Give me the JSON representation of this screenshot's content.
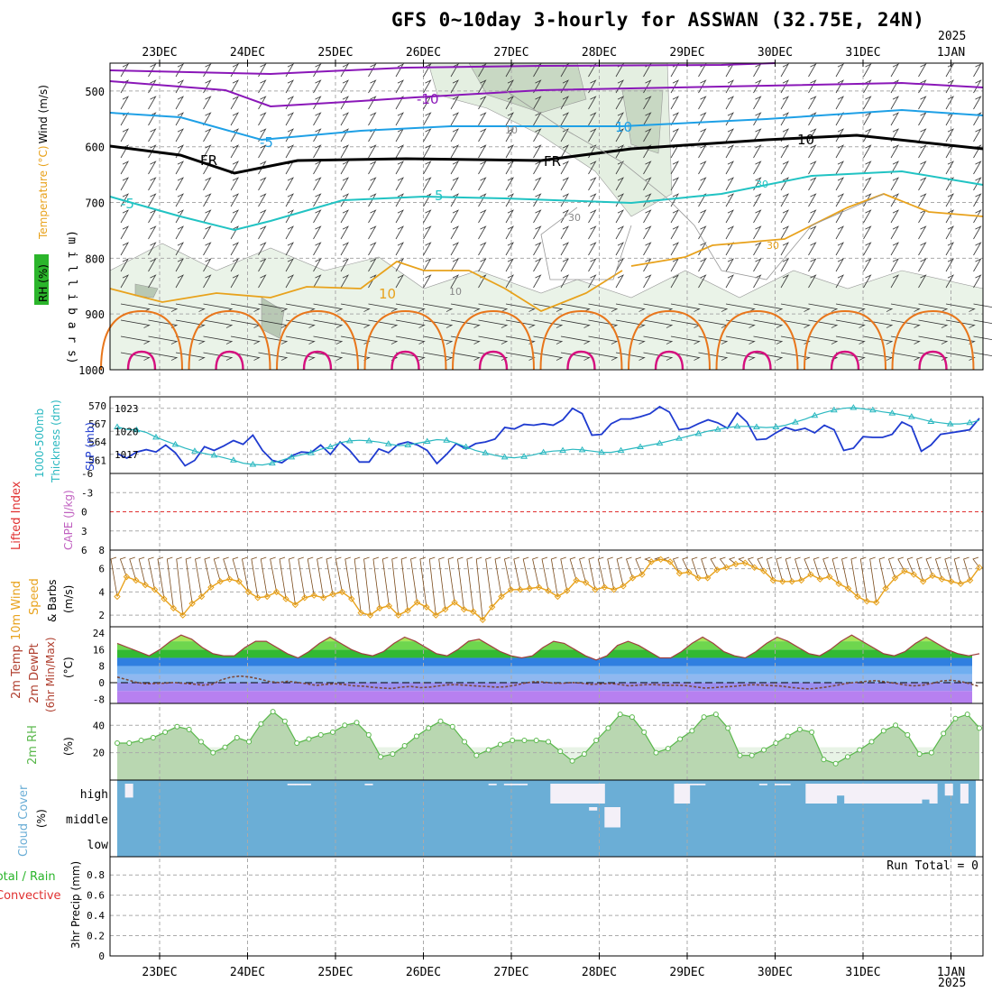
{
  "title": "GFS 0~10day 3-hourly for ASSWAN (32.75E, 24N)",
  "year_label": "2025",
  "days": [
    "23DEC",
    "24DEC",
    "25DEC",
    "26DEC",
    "27DEC",
    "28DEC",
    "29DEC",
    "30DEC",
    "31DEC",
    "1JAN"
  ],
  "colors": {
    "purple": "#8a17b8",
    "sky": "#1ea0e6",
    "cyan": "#21c3c3",
    "orange": "#e8a21c",
    "darkorange": "#e8761c",
    "magenta": "#d6107f",
    "slp": "#1f3bd0",
    "thick": "#2ab8c0",
    "wind": "#e8a21c",
    "rh": "#5ab84c",
    "cloud": "#6baed6"
  },
  "chart_data": [
    {
      "panel": "upper-air",
      "type": "heatmap",
      "ylabel_parts": [
        "Temperature (°C)",
        "Wind (m/s)",
        "RH (%)",
        "(m i l l i b a r s)"
      ],
      "yticks": [
        500,
        600,
        700,
        800,
        900,
        1000
      ],
      "contour_labels": [
        "-10",
        "-5",
        "FR",
        "-5",
        "FR",
        "5",
        "10",
        "10",
        "30",
        "30",
        "10",
        "10",
        "10",
        "30"
      ]
    },
    {
      "panel": "slp-thickness",
      "type": "line",
      "ylabel_parts": [
        "SLP (mb)",
        "1000-500mb",
        "Thickness (dm)"
      ],
      "slp_ticks": [
        1017,
        1020,
        1023
      ],
      "thick_ticks": [
        561,
        564,
        567,
        570
      ],
      "series": [
        {
          "name": "SLP",
          "values": [
            1017.1,
            1016.5,
            1017.3,
            1017.6,
            1017.3,
            1018.2,
            1017.2,
            1015.5,
            1016.2,
            1018.0,
            1017.5,
            1018.1,
            1018.8,
            1018.3,
            1019.5,
            1017.5,
            1016.2,
            1015.9,
            1016.8,
            1017.3,
            1017.2,
            1018.2,
            1017.0,
            1018.6,
            1017.5,
            1016.0,
            1016.0,
            1017.7,
            1017.2,
            1018.3,
            1018.6,
            1018.2,
            1017.5,
            1015.8,
            1017.0,
            1018.4,
            1017.7,
            1018.4,
            1018.6,
            1019.0,
            1020.5,
            1020.3,
            1020.9,
            1020.8,
            1021.0,
            1020.8,
            1021.5,
            1023.0,
            1022.3,
            1019.5,
            1019.6,
            1021.0,
            1021.6,
            1021.6,
            1021.9,
            1022.3,
            1023.2,
            1022.5,
            1020.2,
            1020.4,
            1021.0,
            1021.5,
            1021.1,
            1020.4,
            1022.4,
            1021.2,
            1018.9,
            1019.0,
            1019.8,
            1020.5,
            1020.1,
            1020.4,
            1019.8,
            1020.8,
            1020.2,
            1017.5,
            1017.8,
            1019.3,
            1019.2,
            1019.2,
            1019.6,
            1021.2,
            1020.6,
            1017.4,
            1018.2,
            1019.6,
            1019.8,
            1020.0,
            1020.2,
            1021.7
          ]
        },
        {
          "name": "Thickness",
          "values": [
            566.5,
            566.1,
            566.0,
            565.6,
            564.8,
            564.2,
            563.6,
            563.0,
            562.5,
            562.1,
            561.8,
            561.4,
            561.0,
            560.5,
            560.3,
            560.2,
            560.5,
            561.0,
            561.5,
            561.9,
            562.2,
            562.8,
            563.2,
            563.9,
            564.2,
            564.3,
            564.2,
            564.0,
            563.7,
            563.4,
            563.5,
            563.8,
            564.1,
            564.4,
            564.3,
            563.8,
            563.2,
            562.6,
            562.2,
            561.8,
            561.5,
            561.4,
            561.6,
            561.9,
            562.3,
            562.5,
            562.6,
            562.8,
            562.7,
            562.5,
            562.3,
            562.3,
            562.6,
            562.9,
            563.2,
            563.5,
            563.8,
            564.2,
            564.6,
            565.0,
            565.4,
            565.8,
            566.1,
            566.4,
            566.6,
            566.6,
            566.5,
            566.4,
            566.5,
            566.8,
            567.3,
            567.8,
            568.4,
            568.9,
            569.3,
            569.6,
            569.7,
            569.5,
            569.3,
            569.0,
            568.8,
            568.5,
            568.2,
            567.8,
            567.4,
            567.2,
            567.0,
            567.0,
            567.2,
            567.6
          ]
        }
      ]
    },
    {
      "panel": "lifted-index-cape",
      "type": "line",
      "ylabel_parts": [
        "Lifted Index",
        "CAPE (J/kg)"
      ],
      "yticks": [
        "-6",
        "-3",
        "0",
        "3",
        "6"
      ],
      "right_tick": "8",
      "values": []
    },
    {
      "panel": "wind10m",
      "type": "line",
      "ylabel_parts": [
        "10m Wind",
        "Speed",
        "& Barbs",
        "(m/s)"
      ],
      "yticks": [
        2,
        4,
        6
      ],
      "values": [
        3.6,
        5.3,
        5.0,
        4.6,
        4.2,
        3.4,
        2.6,
        2.0,
        3.0,
        3.6,
        4.4,
        4.9,
        5.1,
        4.9,
        4.0,
        3.5,
        3.6,
        4.0,
        3.4,
        2.9,
        3.5,
        3.7,
        3.5,
        3.8,
        4.0,
        3.4,
        2.2,
        2.0,
        2.6,
        2.8,
        2.0,
        2.4,
        3.1,
        2.7,
        2.0,
        2.5,
        3.1,
        2.5,
        2.3,
        1.6,
        2.7,
        3.6,
        4.2,
        4.2,
        4.3,
        4.4,
        4.1,
        3.6,
        4.1,
        5.0,
        4.8,
        4.2,
        4.4,
        4.2,
        4.5,
        5.2,
        5.5,
        6.6,
        6.8,
        6.6,
        5.6,
        5.7,
        5.2,
        5.2,
        5.9,
        6.1,
        6.4,
        6.5,
        6.1,
        5.8,
        5.0,
        4.9,
        4.9,
        5.0,
        5.5,
        5.1,
        5.3,
        4.7,
        4.3,
        3.6,
        3.2,
        3.1,
        4.3,
        5.2,
        5.8,
        5.5,
        4.9,
        5.4,
        5.1,
        4.9,
        4.7,
        5.0,
        6.1
      ]
    },
    {
      "panel": "temp-dewpoint",
      "type": "area",
      "ylabel_parts": [
        "2m Temp",
        "2m DewPt",
        "(6hr Min/Max)",
        "(°C)"
      ],
      "yticks": [
        -8,
        0,
        8,
        16,
        24
      ],
      "temp": [
        19,
        17,
        15,
        13,
        16,
        20,
        23,
        21,
        17,
        14,
        13,
        13,
        17,
        20,
        20,
        17,
        14,
        12,
        15,
        19,
        22,
        19,
        16,
        14,
        13,
        15,
        19,
        22,
        20,
        17,
        14,
        13,
        16,
        20,
        21,
        18,
        15,
        13,
        12,
        13,
        17,
        20,
        19,
        16,
        13,
        11,
        13,
        18,
        20,
        18,
        15,
        12,
        12,
        15,
        19,
        22,
        19,
        15,
        13,
        12,
        15,
        19,
        22,
        20,
        17,
        14,
        13,
        16,
        20,
        23,
        20,
        17,
        14,
        13,
        15,
        19,
        22,
        19,
        16,
        14,
        13,
        14
      ],
      "dewpoint": [
        2.7,
        1.5,
        0.2,
        -0.5,
        -0.4,
        -0.2,
        0.1,
        -0.3,
        -0.6,
        -1.2,
        -0.8,
        1.4,
        2.7,
        3.2,
        2.7,
        1.8,
        0.6,
        0.1,
        0.7,
        0.2,
        -0.5,
        -1.3,
        -0.8,
        -0.5,
        -0.9,
        -1.5,
        -1.7,
        -2.2,
        -2.6,
        -2.8,
        -2.1,
        -1.8,
        -2.4,
        -2.1,
        -1.5,
        -1.0,
        -1.0,
        -1.3,
        -1.6,
        -1.8,
        -2.1,
        -2.0,
        -1.2,
        -0.2,
        0.5,
        0.3,
        -0.2,
        -0.3,
        0.1,
        -0.2,
        -0.8,
        -0.6,
        -0.4,
        -0.8,
        -1.5,
        -1.2,
        -0.9,
        -1.0,
        -1.3,
        -1.2,
        -1.4,
        -2.0,
        -2.6,
        -2.4,
        -2.0,
        -1.8,
        -1.3,
        -1.0,
        -1.1,
        -1.4,
        -1.6,
        -2.2,
        -2.7,
        -3.0,
        -2.6,
        -2.0,
        -1.2,
        -0.3,
        0.2,
        0.6,
        1.0,
        0.5,
        -0.2,
        -1.0,
        -1.5,
        -1.2,
        -0.3,
        0.8,
        1.2,
        0.6,
        -0.5,
        -1.8
      ]
    },
    {
      "panel": "rh2m",
      "type": "area",
      "ylabel_parts": [
        "2m RH",
        "(%)"
      ],
      "yticks": [
        20,
        40
      ],
      "values": [
        27,
        27,
        29,
        31,
        35,
        39,
        37,
        28,
        20,
        24,
        31,
        28,
        41,
        50,
        43,
        27,
        30,
        33,
        35,
        40,
        42,
        33,
        17,
        19,
        25,
        32,
        38,
        43,
        39,
        28,
        18,
        22,
        26,
        29,
        29,
        29,
        28,
        21,
        14,
        19,
        29,
        38,
        48,
        46,
        35,
        20,
        23,
        30,
        36,
        46,
        48,
        38,
        18,
        18,
        22,
        27,
        32,
        37,
        35,
        15,
        12,
        17,
        22,
        28,
        36,
        40,
        33,
        19,
        20,
        34,
        45,
        48,
        38
      ]
    },
    {
      "panel": "cloud-cover",
      "type": "area",
      "ylabel_parts": [
        "Cloud Cover",
        "(%)"
      ],
      "levels": [
        "high",
        "middle",
        "low"
      ],
      "high": [
        0,
        70,
        0,
        0,
        0,
        0,
        0,
        0,
        0,
        0,
        0,
        0,
        0,
        0,
        0,
        0,
        0,
        0,
        0,
        0,
        0,
        0,
        8,
        8,
        8,
        0,
        0,
        0,
        0,
        0,
        0,
        0,
        8,
        0,
        0,
        0,
        0,
        0,
        0,
        0,
        0,
        0,
        0,
        0,
        0,
        0,
        0,
        0,
        8,
        0,
        8,
        8,
        8,
        0,
        0,
        0,
        100,
        100,
        100,
        100,
        100,
        100,
        100,
        0,
        0,
        0,
        0,
        0,
        0,
        0,
        0,
        0,
        100,
        100,
        8,
        8,
        0,
        0,
        0,
        0,
        0,
        0,
        0,
        8,
        0,
        8,
        8,
        0,
        0,
        100,
        100,
        100,
        100,
        60,
        100,
        100,
        100,
        100,
        100,
        100,
        100,
        100,
        100,
        100,
        80,
        100,
        0,
        60,
        0,
        100,
        0
      ],
      "middle": [
        0,
        0,
        0,
        0,
        0,
        0,
        0,
        0,
        0,
        0,
        0,
        0,
        0,
        0,
        0,
        0,
        0,
        0,
        0,
        0,
        0,
        0,
        0,
        0,
        0,
        0,
        0,
        0,
        0,
        0,
        0,
        0,
        0,
        0,
        0,
        0,
        0,
        0,
        0,
        0,
        0,
        0,
        0,
        0,
        0,
        0,
        0,
        0,
        0,
        0,
        0,
        0,
        0,
        0,
        0,
        0,
        0,
        0,
        0,
        0,
        0,
        15,
        0,
        90,
        90,
        0,
        0,
        0,
        0,
        0,
        0,
        0,
        0,
        0,
        0,
        0,
        0,
        0,
        0,
        0,
        0,
        0,
        0,
        0,
        0,
        0,
        0,
        0,
        0,
        0,
        0,
        0,
        0,
        0,
        0,
        0,
        0,
        0,
        0,
        0,
        0,
        0,
        0,
        0,
        0,
        0,
        0,
        0,
        0,
        0,
        0
      ]
    },
    {
      "panel": "precip",
      "type": "bar",
      "ylabel_parts": [
        "Total / Rain",
        "Convective",
        "3hr Precip (mm)"
      ],
      "yticks": [
        "0",
        "0.2",
        "0.4",
        "0.6",
        "0.8"
      ],
      "run_total_label": "Run Total = 0",
      "values": []
    }
  ]
}
